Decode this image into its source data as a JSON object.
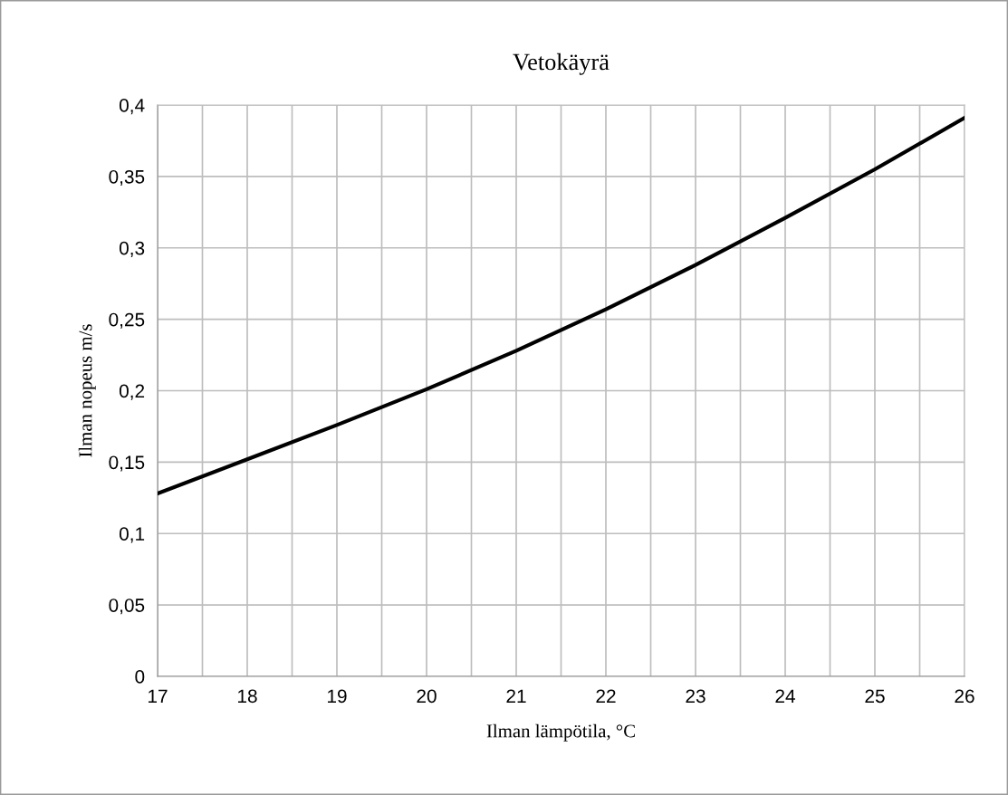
{
  "chart_data": {
    "type": "line",
    "title": "Vetokäyrä",
    "xlabel": "Ilman lämpötila, °C",
    "ylabel": "Ilman nopeus m/s",
    "x": [
      17,
      18,
      19,
      20,
      21,
      22,
      23,
      24,
      25,
      26
    ],
    "series": [
      {
        "color": "#000000",
        "values": [
          0.128,
          0.152,
          0.176,
          0.201,
          0.228,
          0.257,
          0.288,
          0.321,
          0.355,
          0.391
        ]
      }
    ],
    "xlim": [
      17,
      26
    ],
    "xticks": [
      17,
      {
        "value": 17.5,
        "label": null
      },
      18,
      {
        "value": 18.5,
        "label": null
      },
      19,
      {
        "value": 19.5,
        "label": null
      },
      20,
      {
        "value": 20.5,
        "label": null
      },
      21,
      {
        "value": 21.5,
        "label": null
      },
      22,
      {
        "value": 22.5,
        "label": null
      },
      23,
      {
        "value": 23.5,
        "label": null
      },
      24,
      {
        "value": 24.5,
        "label": null
      },
      25,
      {
        "value": 25.5,
        "label": null
      },
      26
    ],
    "ylim": [
      0,
      0.4
    ],
    "yticks": [
      0,
      {
        "value": 0.05,
        "label": "0,05"
      },
      {
        "value": 0.1,
        "label": "0,1"
      },
      {
        "value": 0.15,
        "label": "0,15"
      },
      {
        "value": 0.2,
        "label": "0,2"
      },
      {
        "value": 0.25,
        "label": "0,25"
      },
      {
        "value": 0.3,
        "label": "0,3"
      },
      {
        "value": 0.35,
        "label": "0,35"
      },
      {
        "value": 0.4,
        "label": "0,4"
      }
    ],
    "grid": true
  }
}
